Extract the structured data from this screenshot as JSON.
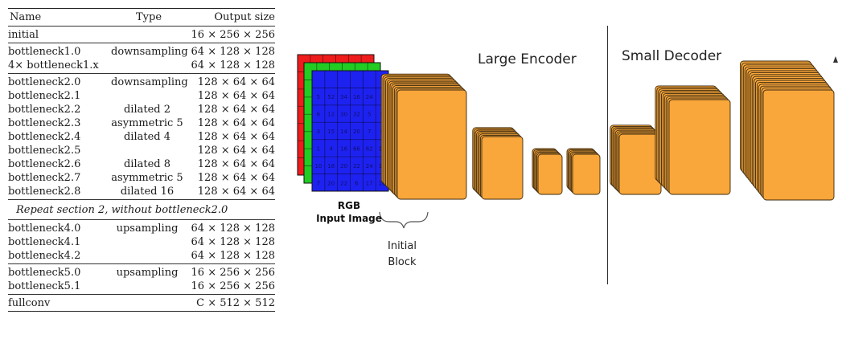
{
  "table": {
    "headers": [
      "Name",
      "Type",
      "Output size"
    ],
    "groups": [
      [
        {
          "name": "initial",
          "type": "",
          "output": "16 × 256 × 256"
        }
      ],
      [
        {
          "name": "bottleneck1.0",
          "type": "downsampling",
          "output": "64 × 128 × 128"
        },
        {
          "name": "4× bottleneck1.x",
          "type": "",
          "output": "64 × 128 × 128"
        }
      ],
      [
        {
          "name": "bottleneck2.0",
          "type": "downsampling",
          "output": "128 × 64 × 64"
        },
        {
          "name": "bottleneck2.1",
          "type": "",
          "output": "128 × 64 × 64"
        },
        {
          "name": "bottleneck2.2",
          "type": "dilated 2",
          "output": "128 × 64 × 64"
        },
        {
          "name": "bottleneck2.3",
          "type": "asymmetric 5",
          "output": "128 × 64 × 64"
        },
        {
          "name": "bottleneck2.4",
          "type": "dilated 4",
          "output": "128 × 64 × 64"
        },
        {
          "name": "bottleneck2.5",
          "type": "",
          "output": "128 × 64 × 64"
        },
        {
          "name": "bottleneck2.6",
          "type": "dilated 8",
          "output": "128 × 64 × 64"
        },
        {
          "name": "bottleneck2.7",
          "type": "asymmetric 5",
          "output": "128 × 64 × 64"
        },
        {
          "name": "bottleneck2.8",
          "type": "dilated 16",
          "output": "128 × 64 × 64"
        }
      ],
      [
        {
          "note": "Repeat section 2, without bottleneck2.0"
        }
      ],
      [
        {
          "name": "bottleneck4.0",
          "type": "upsampling",
          "output": "64 × 128 × 128"
        },
        {
          "name": "bottleneck4.1",
          "type": "",
          "output": "64 × 128 × 128"
        },
        {
          "name": "bottleneck4.2",
          "type": "",
          "output": "64 × 128 × 128"
        }
      ],
      [
        {
          "name": "bottleneck5.0",
          "type": "upsampling",
          "output": "16 × 256 × 256"
        },
        {
          "name": "bottleneck5.1",
          "type": "",
          "output": "16 × 256 × 256"
        }
      ],
      [
        {
          "name": "fullconv",
          "type": "",
          "output": "C × 512 × 512"
        }
      ]
    ]
  },
  "diagram": {
    "large_encoder_label": "Large Encoder",
    "small_decoder_label": "Small Decoder",
    "rgb_label": "RGB",
    "input_image_label": "Input Image",
    "initial_label": "Initial",
    "block_label": "Block",
    "colors": {
      "block_fill": "#F9A63A",
      "block_edge": "#3a2a10",
      "rgb_red": "#EE1C1C",
      "rgb_green": "#22CC22",
      "rgb_blue": "#1E22F0"
    },
    "rgb_grid_values": [
      [
        "5",
        "52",
        "34",
        "16",
        "24",
        "8"
      ],
      [
        "6",
        "12",
        "30",
        "32",
        "5",
        "9"
      ],
      [
        "3",
        "15",
        "14",
        "20",
        "7",
        "6"
      ],
      [
        "1",
        "4",
        "16",
        "66",
        "62",
        "19"
      ],
      [
        "10",
        "18",
        "20",
        "22",
        "24",
        "16"
      ],
      [
        "7",
        "20",
        "22",
        "6",
        "17",
        "18"
      ]
    ]
  }
}
